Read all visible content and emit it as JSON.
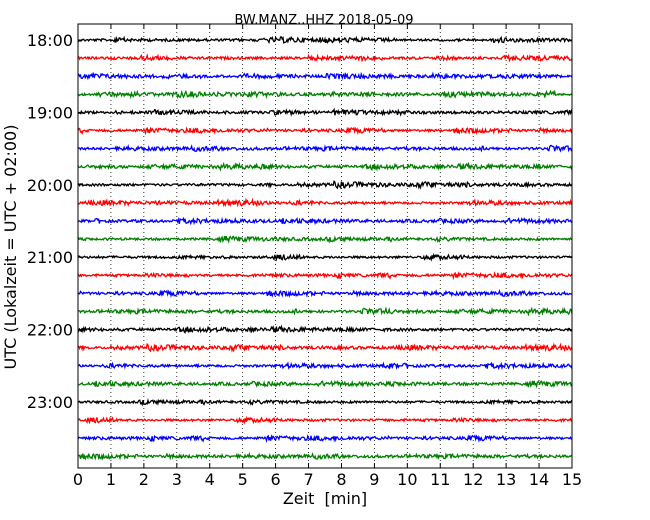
{
  "chart_data": {
    "type": "line",
    "title": "BW.MANZ..HHZ 2018-05-09",
    "xlabel": "Zeit  [min]",
    "ylabel": "UTC (Lokalzeit = UTC + 02:00)",
    "xlim": [
      0,
      15
    ],
    "x_ticks": [
      0,
      1,
      2,
      3,
      4,
      5,
      6,
      7,
      8,
      9,
      10,
      11,
      12,
      13,
      14,
      15
    ],
    "y_tick_labels": [
      "18:00",
      "19:00",
      "20:00",
      "21:00",
      "22:00",
      "23:00"
    ],
    "traces_per_hour": 4,
    "trace_colors": [
      "#000000",
      "#ff0000",
      "#0000ff",
      "#008000"
    ],
    "grid": "vertical dotted lines at each minute",
    "series": [
      {
        "start": "18:00"
      },
      {
        "start": "18:15"
      },
      {
        "start": "18:30"
      },
      {
        "start": "18:45"
      },
      {
        "start": "19:00"
      },
      {
        "start": "19:15"
      },
      {
        "start": "19:30"
      },
      {
        "start": "19:45"
      },
      {
        "start": "20:00"
      },
      {
        "start": "20:15"
      },
      {
        "start": "20:30"
      },
      {
        "start": "20:45"
      },
      {
        "start": "21:00"
      },
      {
        "start": "21:15"
      },
      {
        "start": "21:30"
      },
      {
        "start": "21:45"
      },
      {
        "start": "22:00"
      },
      {
        "start": "22:15"
      },
      {
        "start": "22:30"
      },
      {
        "start": "22:45"
      },
      {
        "start": "23:00"
      },
      {
        "start": "23:15"
      },
      {
        "start": "23:30"
      },
      {
        "start": "23:45"
      }
    ]
  }
}
